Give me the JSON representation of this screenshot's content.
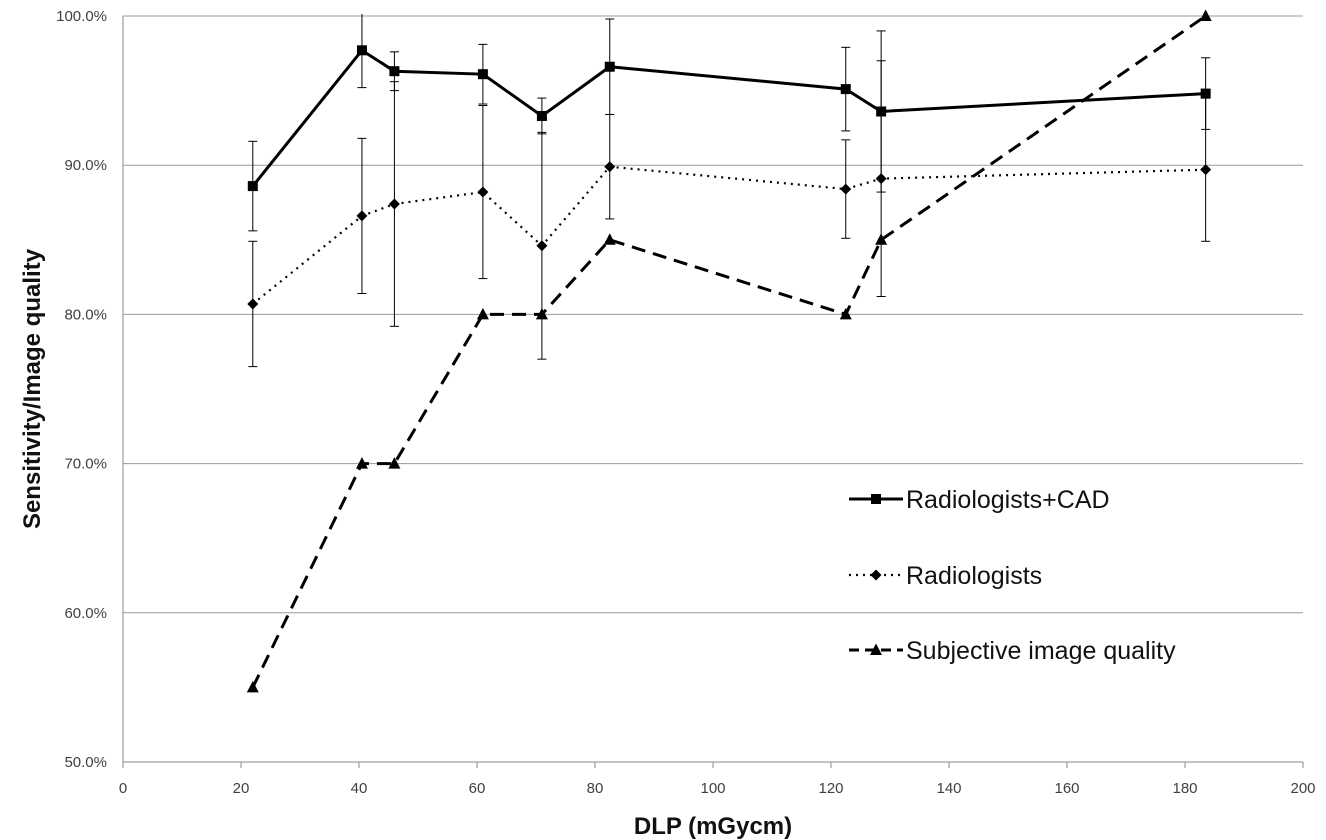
{
  "chart_data": {
    "type": "line",
    "title": "",
    "xlabel": "DLP (mGycm)",
    "ylabel": "Sensitivity/Image quality",
    "xlim": [
      0,
      200
    ],
    "ylim": [
      50,
      100
    ],
    "x_ticks": [
      0,
      20,
      40,
      60,
      80,
      100,
      120,
      140,
      160,
      180,
      200
    ],
    "x_tick_labels": [
      "0",
      "20",
      "40",
      "60",
      "80",
      "100",
      "120",
      "140",
      "160",
      "180",
      "200"
    ],
    "y_ticks": [
      50,
      60,
      70,
      80,
      90,
      100
    ],
    "y_tick_labels": [
      "50.0%",
      "60.0%",
      "70.0%",
      "80.0%",
      "90.0%",
      "100.0%"
    ],
    "grid": "horizontal",
    "legend_position": "right",
    "series": [
      {
        "name": "Radiologists+CAD",
        "line_style": "solid",
        "marker": "square",
        "color": "#000000",
        "points": [
          {
            "x": 22,
            "y": 88.6,
            "err": 3.0
          },
          {
            "x": 40.5,
            "y": 97.7,
            "err": 2.5
          },
          {
            "x": 46,
            "y": 96.3,
            "err": 1.3
          },
          {
            "x": 61,
            "y": 96.1,
            "err": 2.0
          },
          {
            "x": 71,
            "y": 93.3,
            "err": 1.2
          },
          {
            "x": 82.5,
            "y": 96.6,
            "err": 3.2
          },
          {
            "x": 122.5,
            "y": 95.1,
            "err": 2.8
          },
          {
            "x": 128.5,
            "y": 93.6,
            "err": 5.4
          },
          {
            "x": 183.5,
            "y": 94.8,
            "err": 2.4
          }
        ]
      },
      {
        "name": "Radiologists",
        "line_style": "dotted",
        "marker": "diamond",
        "color": "#000000",
        "points": [
          {
            "x": 22,
            "y": 80.7,
            "err": 4.2
          },
          {
            "x": 40.5,
            "y": 86.6,
            "err": 5.2
          },
          {
            "x": 46,
            "y": 87.4,
            "err": 8.2
          },
          {
            "x": 61,
            "y": 88.2,
            "err": 5.8
          },
          {
            "x": 71,
            "y": 84.6,
            "err": 7.6
          },
          {
            "x": 82.5,
            "y": 89.9,
            "err": 3.5
          },
          {
            "x": 122.5,
            "y": 88.4,
            "err": 3.3
          },
          {
            "x": 128.5,
            "y": 89.1,
            "err": 7.9
          },
          {
            "x": 183.5,
            "y": 89.7,
            "err": 4.8
          }
        ]
      },
      {
        "name": "Subjective image quality",
        "line_style": "dashed",
        "marker": "triangle",
        "color": "#000000",
        "points": [
          {
            "x": 22,
            "y": 55
          },
          {
            "x": 40.5,
            "y": 70
          },
          {
            "x": 46,
            "y": 70
          },
          {
            "x": 61,
            "y": 80
          },
          {
            "x": 71,
            "y": 80
          },
          {
            "x": 82.5,
            "y": 85
          },
          {
            "x": 122.5,
            "y": 80
          },
          {
            "x": 128.5,
            "y": 85
          },
          {
            "x": 183.5,
            "y": 100
          }
        ]
      }
    ]
  }
}
